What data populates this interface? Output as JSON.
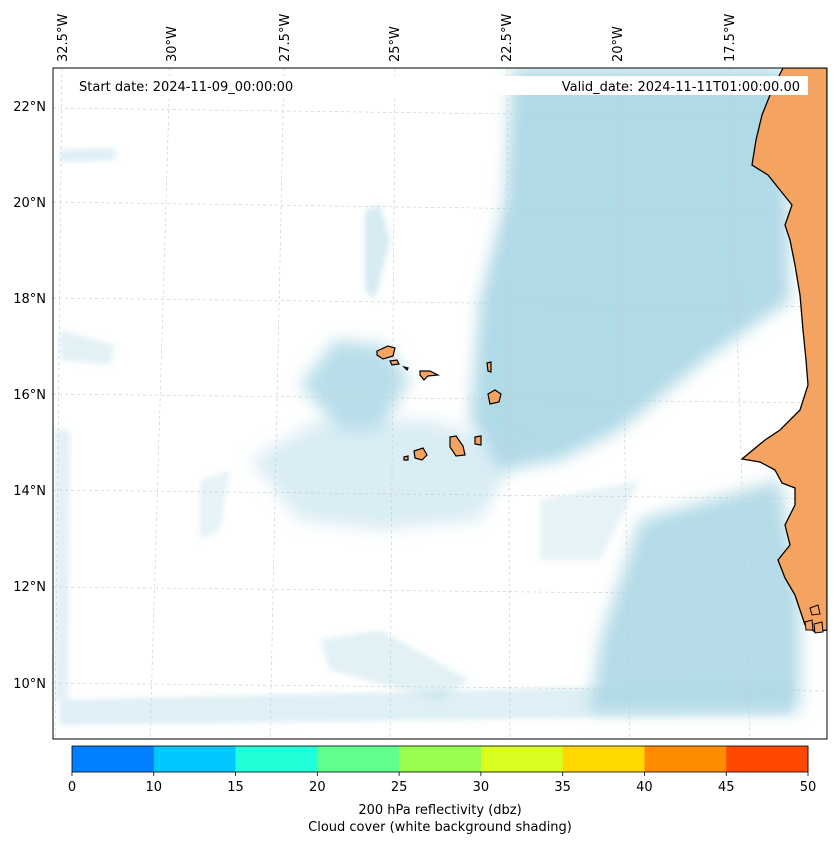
{
  "map": {
    "start_label": "Start date: 2024-11-09_00:00:00",
    "valid_label": "Valid_date: 2024-11-11T01:00:00.00",
    "lon_ticks": [
      "32.5°W",
      "30°W",
      "27.5°W",
      "25°W",
      "22.5°W",
      "20°W",
      "17.5°W"
    ],
    "lat_ticks": [
      "22°N",
      "20°N",
      "18°N",
      "16°N",
      "14°N",
      "12°N",
      "10°N"
    ],
    "colors": {
      "cloud": "#add8e6",
      "land": "#f4a460",
      "coast": "#000000",
      "grid": "#c8c8c8"
    }
  },
  "colorbar": {
    "ticks": [
      "0",
      "10",
      "15",
      "20",
      "25",
      "30",
      "35",
      "40",
      "45",
      "50"
    ],
    "colors": [
      "#0080ff",
      "#00c8ff",
      "#20ffd8",
      "#60ff90",
      "#98ff50",
      "#d8ff20",
      "#ffd800",
      "#ff8c00",
      "#ff4800"
    ],
    "label_line1": "200 hPa reflectivity (dbz)",
    "label_line2": "Cloud cover (white background shading)"
  }
}
